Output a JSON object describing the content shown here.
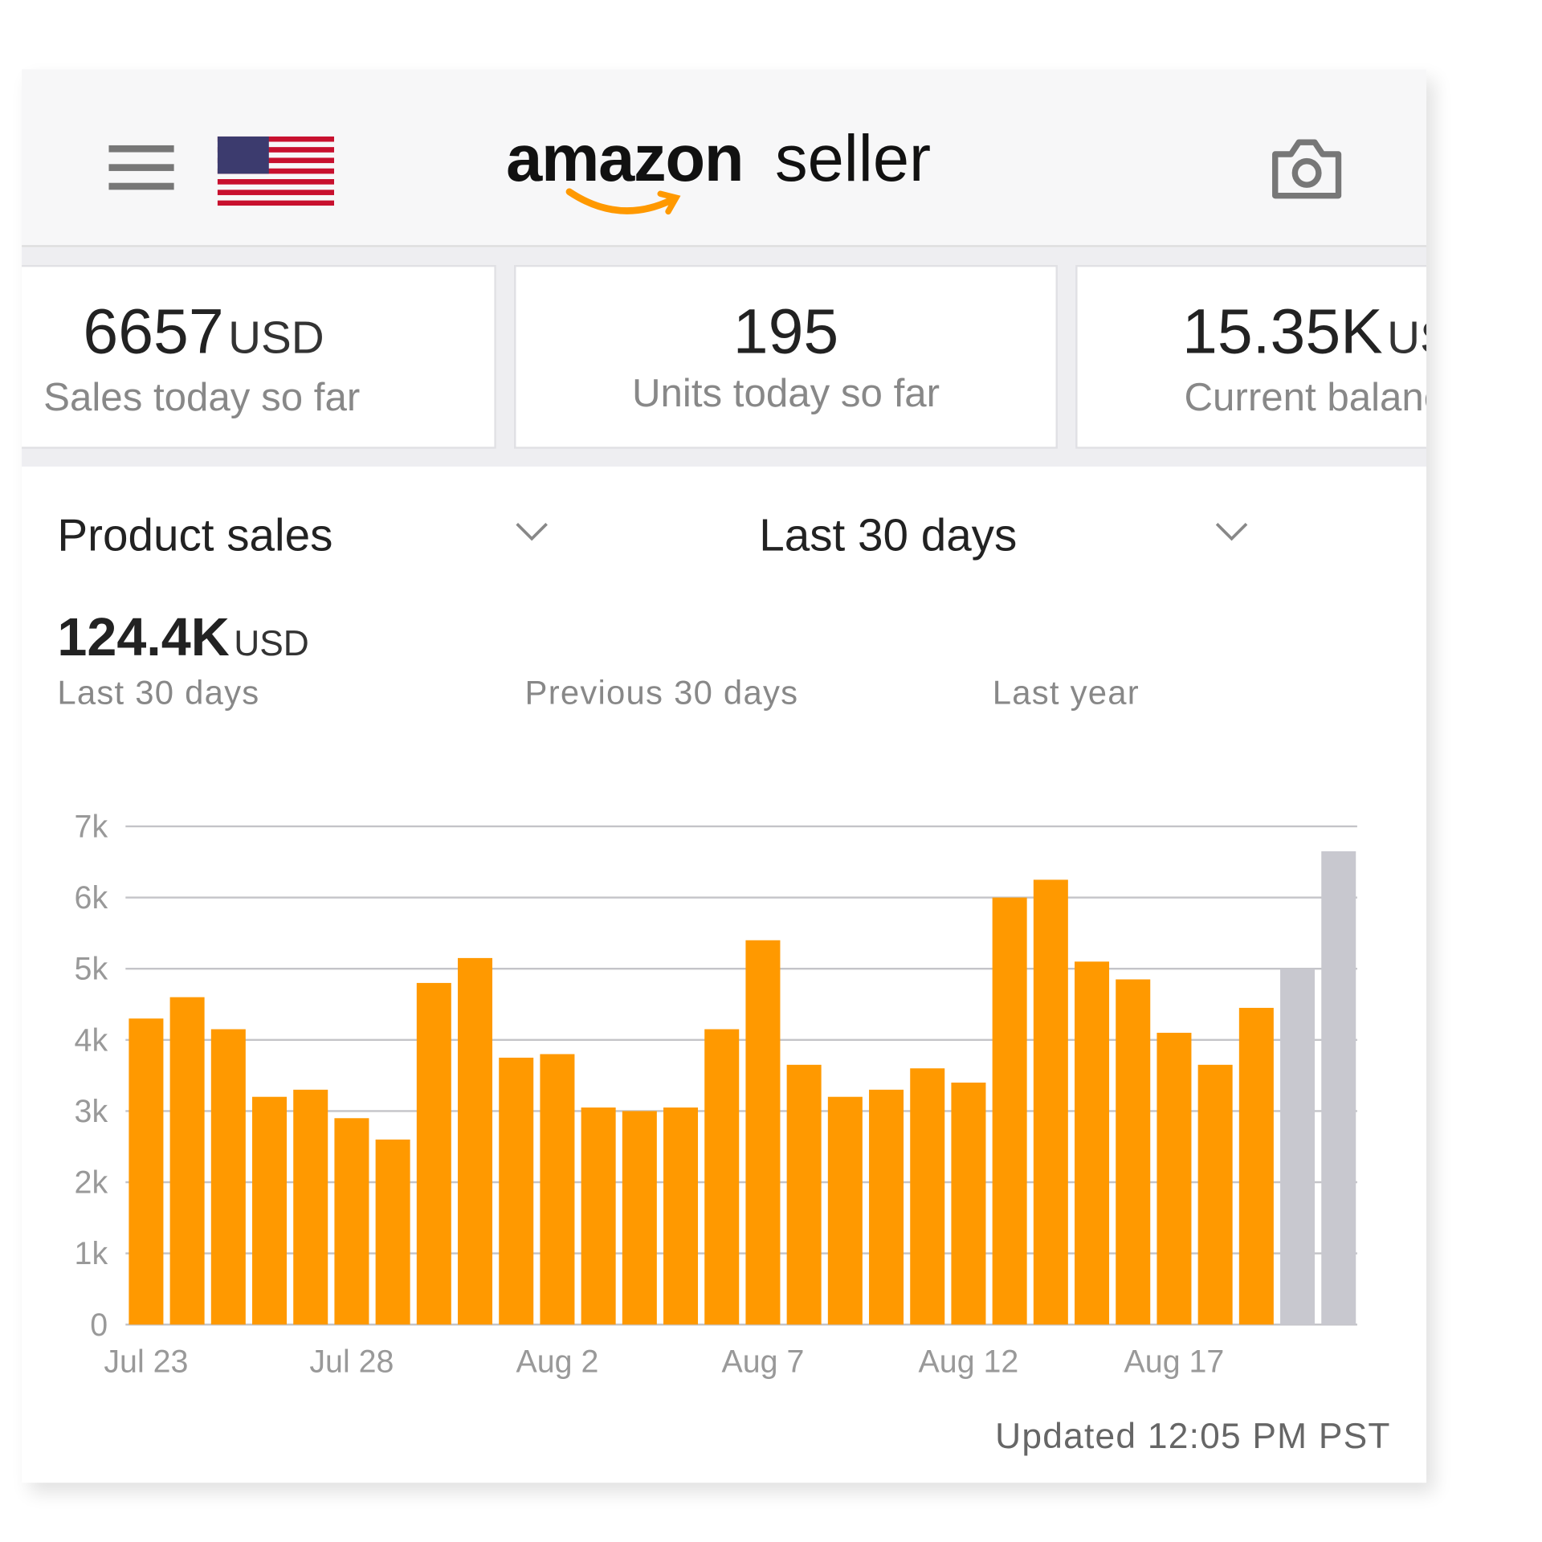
{
  "header": {
    "logo": "amazon",
    "logo_suffix": "seller"
  },
  "cards": [
    {
      "value": "6657",
      "unit": "USD",
      "label": "Sales today so far"
    },
    {
      "value": "195",
      "label": "Units today so far"
    },
    {
      "value": "15.35K",
      "unit": "USD",
      "label": "Current balance"
    }
  ],
  "selectors": {
    "metric": "Product sales",
    "period": "Last 30 days"
  },
  "summary": {
    "value": "124.4K",
    "unit": "USD",
    "periods": [
      "Last 30 days",
      "Previous 30 days",
      "Last year"
    ]
  },
  "chart_data": {
    "type": "bar",
    "categories": [
      "Jul 23",
      null,
      null,
      null,
      null,
      "Jul 28",
      null,
      null,
      null,
      null,
      "Aug 2",
      null,
      null,
      null,
      null,
      "Aug 7",
      null,
      null,
      null,
      null,
      "Aug 12",
      null,
      null,
      null,
      null,
      "Aug 17",
      null,
      null,
      null,
      null
    ],
    "values": [
      4300,
      4600,
      4150,
      3200,
      3300,
      2900,
      2600,
      4800,
      5150,
      3750,
      3800,
      3050,
      3000,
      3050,
      4150,
      5400,
      3650,
      3200,
      3300,
      3600,
      3400,
      6000,
      6250,
      5100,
      4850,
      4100,
      3650,
      4450,
      5000,
      6650
    ],
    "colors": [
      "#ff9900",
      "#ff9900",
      "#ff9900",
      "#ff9900",
      "#ff9900",
      "#ff9900",
      "#ff9900",
      "#ff9900",
      "#ff9900",
      "#ff9900",
      "#ff9900",
      "#ff9900",
      "#ff9900",
      "#ff9900",
      "#ff9900",
      "#ff9900",
      "#ff9900",
      "#ff9900",
      "#ff9900",
      "#ff9900",
      "#ff9900",
      "#ff9900",
      "#ff9900",
      "#ff9900",
      "#ff9900",
      "#ff9900",
      "#ff9900",
      "#ff9900",
      "#c8c8cf",
      "#c8c8cf"
    ],
    "ylim": [
      0,
      7000
    ],
    "yticks": [
      0,
      {
        "value": 1000,
        "label": "1k"
      },
      {
        "value": 2000,
        "label": "2k"
      },
      {
        "value": 3000,
        "label": "3k"
      },
      {
        "value": 4000,
        "label": "4k"
      },
      {
        "value": 5000,
        "label": "5k"
      },
      {
        "value": 6000,
        "label": "6k"
      },
      {
        "value": 7000,
        "label": "7k"
      }
    ],
    "grid": true
  },
  "footer": "Updated 12:05 PM PST"
}
